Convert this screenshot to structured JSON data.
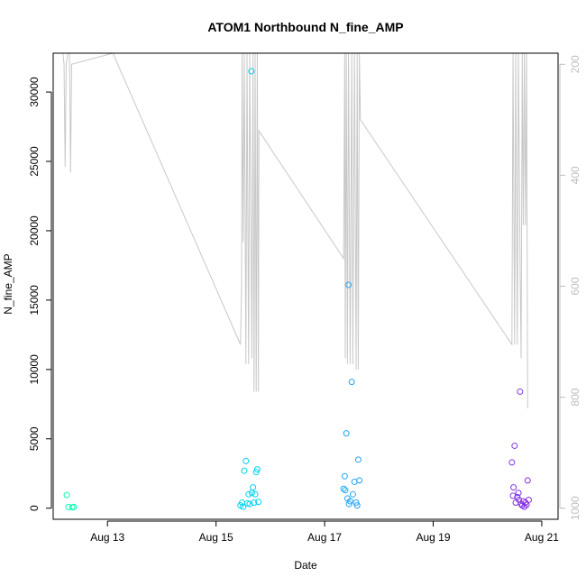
{
  "chart_data": {
    "type": "scatter",
    "title": "ATOM1 Northbound N_fine_AMP",
    "xlabel": "Date",
    "ylabel": "N_fine_AMP",
    "x_ticks": [
      "Aug 13",
      "Aug 15",
      "Aug 17",
      "Aug 19",
      "Aug 21"
    ],
    "x_tick_days": [
      13,
      15,
      17,
      19,
      21
    ],
    "xlim_days": [
      12.0,
      21.3
    ],
    "ylim": [
      -800,
      32800
    ],
    "y_ticks": [
      0,
      5000,
      10000,
      15000,
      20000,
      25000,
      30000
    ],
    "y2_ticks": [
      200,
      400,
      600,
      800,
      1000
    ],
    "y2lim": [
      1020,
      180
    ],
    "grid": false,
    "legend": "none",
    "colors": {
      "points_start": "#00ffb0",
      "points_mid": "#00c8ff",
      "points_end": "#8a2be2",
      "line": "#c8c8c8",
      "axis": "#000000",
      "y2_axis": "#bdbdbd"
    },
    "series": [
      {
        "values": [
          {
            "x": 12.25,
            "y": 950
          },
          {
            "x": 12.28,
            "y": 80
          },
          {
            "x": 12.35,
            "y": 60
          },
          {
            "x": 12.38,
            "y": 90
          },
          {
            "x": 15.45,
            "y": 200
          },
          {
            "x": 15.48,
            "y": 400
          },
          {
            "x": 15.5,
            "y": 100
          },
          {
            "x": 15.52,
            "y": 2700
          },
          {
            "x": 15.55,
            "y": 3400
          },
          {
            "x": 15.58,
            "y": 350
          },
          {
            "x": 15.6,
            "y": 1000
          },
          {
            "x": 15.62,
            "y": 300
          },
          {
            "x": 15.65,
            "y": 31500
          },
          {
            "x": 15.66,
            "y": 1100
          },
          {
            "x": 15.68,
            "y": 1500
          },
          {
            "x": 15.7,
            "y": 400
          },
          {
            "x": 15.72,
            "y": 1000
          },
          {
            "x": 15.74,
            "y": 2600
          },
          {
            "x": 15.76,
            "y": 2800
          },
          {
            "x": 15.78,
            "y": 450
          },
          {
            "x": 17.35,
            "y": 1400
          },
          {
            "x": 17.37,
            "y": 2300
          },
          {
            "x": 17.38,
            "y": 1300
          },
          {
            "x": 17.4,
            "y": 5400
          },
          {
            "x": 17.42,
            "y": 700
          },
          {
            "x": 17.44,
            "y": 16100
          },
          {
            "x": 17.45,
            "y": 300
          },
          {
            "x": 17.47,
            "y": 500
          },
          {
            "x": 17.5,
            "y": 9100
          },
          {
            "x": 17.52,
            "y": 1000
          },
          {
            "x": 17.55,
            "y": 1900
          },
          {
            "x": 17.58,
            "y": 400
          },
          {
            "x": 17.6,
            "y": 200
          },
          {
            "x": 17.62,
            "y": 3500
          },
          {
            "x": 17.64,
            "y": 2000
          },
          {
            "x": 20.45,
            "y": 3300
          },
          {
            "x": 20.47,
            "y": 900
          },
          {
            "x": 20.48,
            "y": 1500
          },
          {
            "x": 20.5,
            "y": 4500
          },
          {
            "x": 20.52,
            "y": 400
          },
          {
            "x": 20.55,
            "y": 800
          },
          {
            "x": 20.57,
            "y": 1100
          },
          {
            "x": 20.58,
            "y": 600
          },
          {
            "x": 20.6,
            "y": 8400
          },
          {
            "x": 20.62,
            "y": 300
          },
          {
            "x": 20.64,
            "y": 200
          },
          {
            "x": 20.66,
            "y": 500
          },
          {
            "x": 20.68,
            "y": 100
          },
          {
            "x": 20.7,
            "y": 400
          },
          {
            "x": 20.72,
            "y": 250
          },
          {
            "x": 20.74,
            "y": 2000
          },
          {
            "x": 20.76,
            "y": 600
          }
        ]
      },
      {
        "axis": "right",
        "values": [
          {
            "x": 12.18,
            "y": 180
          },
          {
            "x": 12.2,
            "y": 200
          },
          {
            "x": 12.22,
            "y": 385
          },
          {
            "x": 12.24,
            "y": 200
          },
          {
            "x": 12.27,
            "y": 180
          },
          {
            "x": 12.3,
            "y": 180
          },
          {
            "x": 12.32,
            "y": 395
          },
          {
            "x": 12.34,
            "y": 200
          },
          {
            "x": 13.1,
            "y": 180
          },
          {
            "x": 15.45,
            "y": 705
          },
          {
            "x": 15.47,
            "y": 600
          },
          {
            "x": 15.48,
            "y": 180
          },
          {
            "x": 15.5,
            "y": 520
          },
          {
            "x": 15.52,
            "y": 180
          },
          {
            "x": 15.55,
            "y": 740
          },
          {
            "x": 15.57,
            "y": 180
          },
          {
            "x": 15.6,
            "y": 740
          },
          {
            "x": 15.62,
            "y": 180
          },
          {
            "x": 15.66,
            "y": 730
          },
          {
            "x": 15.68,
            "y": 180
          },
          {
            "x": 15.7,
            "y": 790
          },
          {
            "x": 15.72,
            "y": 180
          },
          {
            "x": 15.74,
            "y": 790
          },
          {
            "x": 15.76,
            "y": 180
          },
          {
            "x": 15.78,
            "y": 790
          },
          {
            "x": 15.79,
            "y": 320
          },
          {
            "x": 17.35,
            "y": 550
          },
          {
            "x": 17.37,
            "y": 180
          },
          {
            "x": 17.38,
            "y": 730
          },
          {
            "x": 17.4,
            "y": 180
          },
          {
            "x": 17.42,
            "y": 740
          },
          {
            "x": 17.44,
            "y": 180
          },
          {
            "x": 17.47,
            "y": 740
          },
          {
            "x": 17.5,
            "y": 180
          },
          {
            "x": 17.52,
            "y": 740
          },
          {
            "x": 17.55,
            "y": 180
          },
          {
            "x": 17.58,
            "y": 750
          },
          {
            "x": 17.6,
            "y": 180
          },
          {
            "x": 17.62,
            "y": 750
          },
          {
            "x": 17.64,
            "y": 180
          },
          {
            "x": 17.66,
            "y": 300
          },
          {
            "x": 20.45,
            "y": 705
          },
          {
            "x": 20.47,
            "y": 180
          },
          {
            "x": 20.5,
            "y": 705
          },
          {
            "x": 20.52,
            "y": 180
          },
          {
            "x": 20.55,
            "y": 705
          },
          {
            "x": 20.57,
            "y": 180
          },
          {
            "x": 20.6,
            "y": 560
          },
          {
            "x": 20.62,
            "y": 730
          },
          {
            "x": 20.64,
            "y": 180
          },
          {
            "x": 20.66,
            "y": 490
          },
          {
            "x": 20.68,
            "y": 180
          },
          {
            "x": 20.7,
            "y": 490
          },
          {
            "x": 20.72,
            "y": 180
          },
          {
            "x": 20.74,
            "y": 820
          }
        ]
      }
    ]
  }
}
